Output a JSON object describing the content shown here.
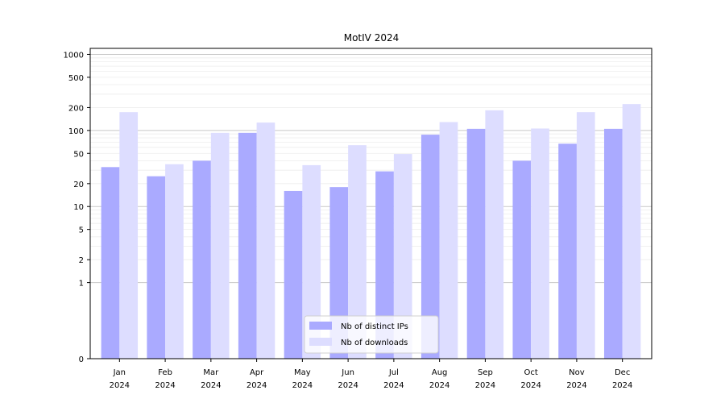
{
  "chart_data": {
    "type": "bar",
    "title": "MotIV 2024",
    "xlabel": "",
    "ylabel": "",
    "categories": [
      [
        "Jan",
        "2024"
      ],
      [
        "Feb",
        "2024"
      ],
      [
        "Mar",
        "2024"
      ],
      [
        "Apr",
        "2024"
      ],
      [
        "May",
        "2024"
      ],
      [
        "Jun",
        "2024"
      ],
      [
        "Jul",
        "2024"
      ],
      [
        "Aug",
        "2024"
      ],
      [
        "Sep",
        "2024"
      ],
      [
        "Oct",
        "2024"
      ],
      [
        "Nov",
        "2024"
      ],
      [
        "Dec",
        "2024"
      ]
    ],
    "series": [
      {
        "name": "Nb of distinct IPs",
        "color": "#aaaaff",
        "values": [
          33,
          25,
          40,
          93,
          16,
          18,
          29,
          88,
          105,
          40,
          67,
          105
        ]
      },
      {
        "name": "Nb of downloads",
        "color": "#ddddff",
        "values": [
          174,
          36,
          93,
          127,
          35,
          64,
          49,
          129,
          184,
          106,
          174,
          222
        ]
      }
    ],
    "y_scale": "symlog",
    "ylim": [
      0,
      1200
    ],
    "yticks": [
      0,
      1,
      2,
      5,
      10,
      20,
      50,
      100,
      200,
      500,
      1000
    ],
    "ytick_labels": [
      "0",
      "1",
      "2",
      "5",
      "10",
      "20",
      "50",
      "100",
      "200",
      "500",
      "1000"
    ],
    "grid": true,
    "legend_position": "bottom-center"
  }
}
